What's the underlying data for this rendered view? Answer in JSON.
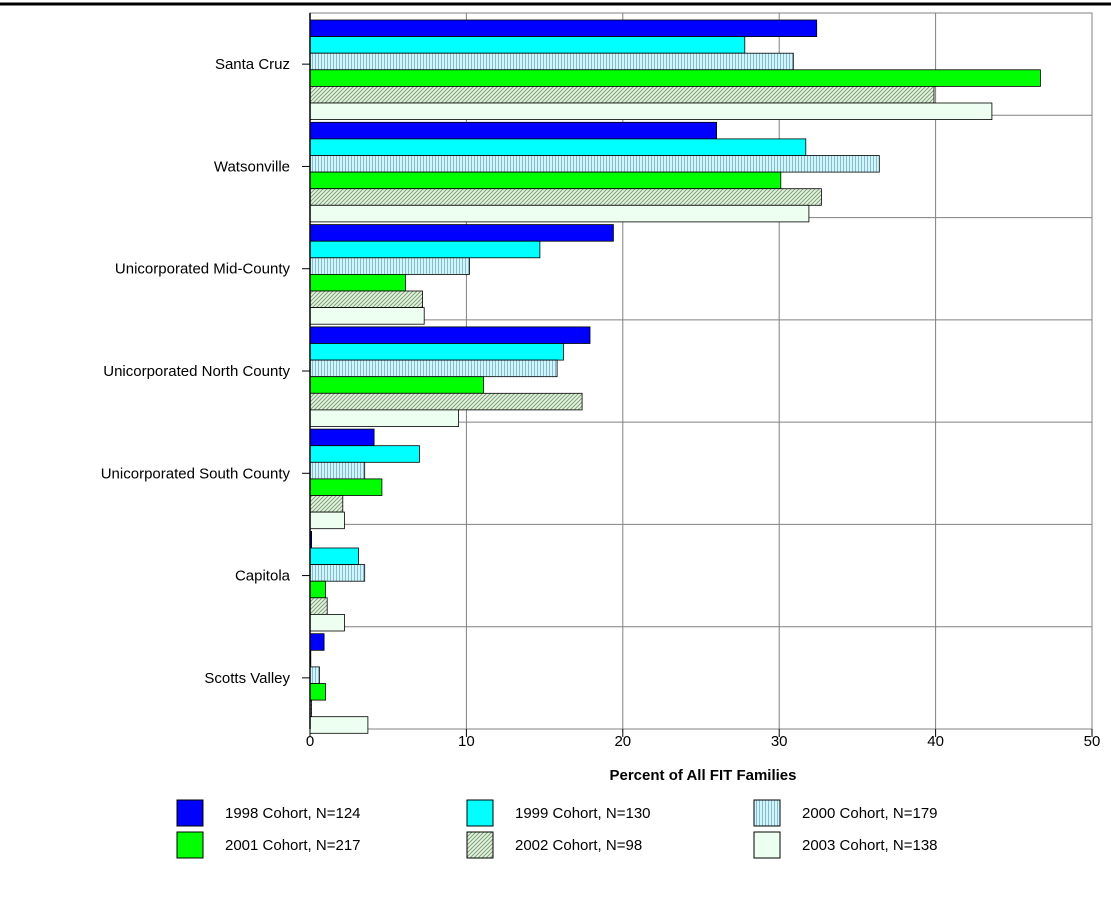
{
  "chart_data": {
    "type": "bar",
    "orientation": "horizontal",
    "categories": [
      "Santa Cruz",
      "Watsonville",
      "Unicorporated Mid-County",
      "Unicorporated North County",
      "Unicorporated South County",
      "Capitola",
      "Scotts Valley"
    ],
    "series": [
      {
        "name": "1998 Cohort, N=124",
        "values": [
          32.4,
          26.0,
          19.4,
          17.9,
          4.1,
          0.1,
          0.9
        ],
        "color": "#0000ff",
        "pattern": "solid"
      },
      {
        "name": "1999 Cohort, N=130",
        "values": [
          27.8,
          31.7,
          14.7,
          16.2,
          7.0,
          3.1,
          0.0
        ],
        "color": "#00ffff",
        "pattern": "solid"
      },
      {
        "name": "2000 Cohort, N=179",
        "values": [
          30.9,
          36.4,
          10.2,
          15.8,
          3.5,
          3.5,
          0.6
        ],
        "color": "#ccf7ff",
        "pattern": "vertical-lines"
      },
      {
        "name": "2001 Cohort, N=217",
        "values": [
          46.7,
          30.1,
          6.1,
          11.1,
          4.6,
          1.0,
          1.0
        ],
        "color": "#00ff00",
        "pattern": "solid"
      },
      {
        "name": "2002 Cohort, N=98",
        "values": [
          39.9,
          32.7,
          7.2,
          17.4,
          2.1,
          1.1,
          0.1
        ],
        "color": "#d6f0d6",
        "pattern": "diagonal-lines"
      },
      {
        "name": "2003 Cohort, N=138",
        "values": [
          43.6,
          31.9,
          7.3,
          9.5,
          2.2,
          2.2,
          3.7
        ],
        "color": "#ecfff0",
        "pattern": "solid"
      }
    ],
    "title": "",
    "xlabel": "Percent of All FIT Families",
    "ylabel": "",
    "xlim": [
      0,
      50
    ],
    "xticks": [
      0,
      10,
      20,
      30,
      40,
      50
    ],
    "grid": true,
    "legend_position": "bottom"
  }
}
